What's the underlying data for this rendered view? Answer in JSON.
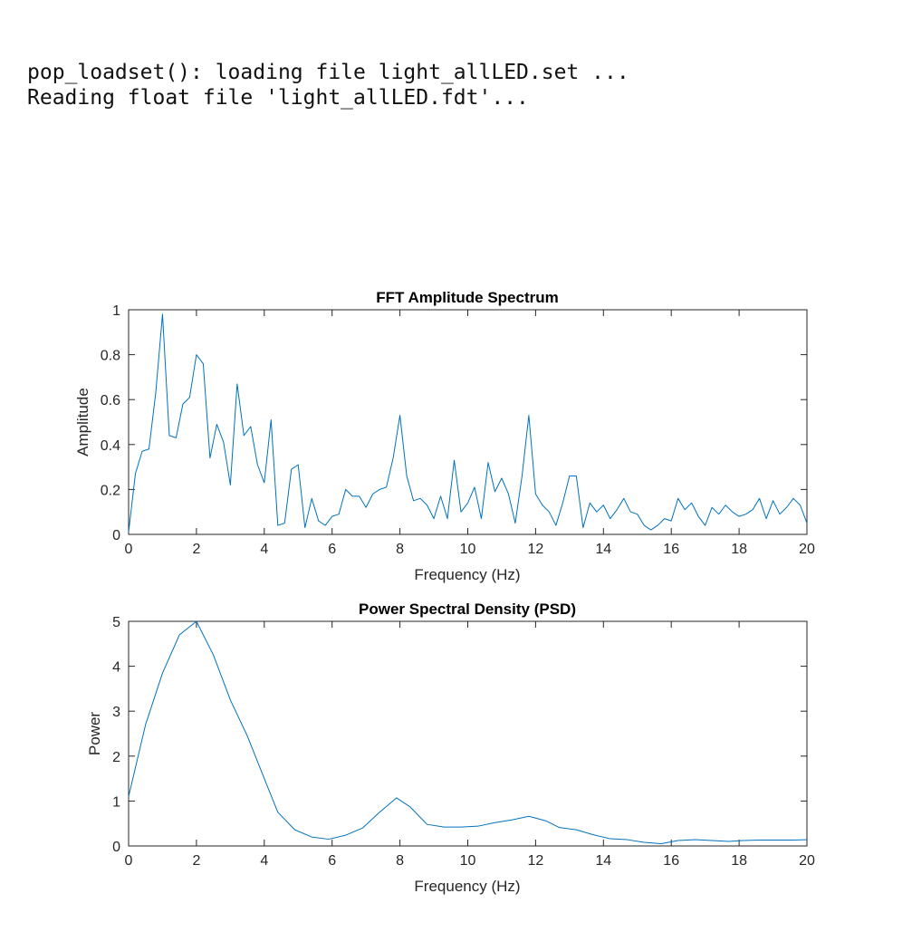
{
  "console": {
    "lines": [
      "pop_loadset(): loading file light_allLED.set ...",
      "Reading float file 'light_allLED.fdt'..."
    ]
  },
  "colors": {
    "series": "#0072BD",
    "axes": "#262626"
  },
  "chart_data": [
    {
      "type": "line",
      "title": "FFT Amplitude Spectrum",
      "xlabel": "Frequency (Hz)",
      "ylabel": "Amplitude",
      "xlim": [
        0,
        20
      ],
      "ylim": [
        0,
        1
      ],
      "xticks": [
        0,
        2,
        4,
        6,
        8,
        10,
        12,
        14,
        16,
        18,
        20
      ],
      "yticks": [
        0,
        0.2,
        0.4,
        0.6,
        0.8,
        1
      ],
      "xtick_labels": [
        "0",
        "2",
        "4",
        "6",
        "8",
        "10",
        "12",
        "14",
        "16",
        "18",
        "20"
      ],
      "ytick_labels": [
        "0",
        "0.2",
        "0.4",
        "0.6",
        "0.8",
        "1"
      ],
      "grid": false,
      "series": [
        {
          "color": "#0072BD",
          "x": [
            0,
            0.2,
            0.4,
            0.6,
            0.8,
            1.0,
            1.2,
            1.4,
            1.6,
            1.8,
            2.0,
            2.2,
            2.4,
            2.6,
            2.8,
            3.0,
            3.2,
            3.4,
            3.6,
            3.8,
            4.0,
            4.2,
            4.4,
            4.6,
            4.8,
            5.0,
            5.2,
            5.4,
            5.6,
            5.8,
            6.0,
            6.2,
            6.4,
            6.6,
            6.8,
            7.0,
            7.2,
            7.4,
            7.6,
            7.8,
            8.0,
            8.2,
            8.4,
            8.6,
            8.8,
            9.0,
            9.2,
            9.4,
            9.6,
            9.8,
            10.0,
            10.2,
            10.4,
            10.6,
            10.8,
            11.0,
            11.2,
            11.4,
            11.6,
            11.8,
            12.0,
            12.2,
            12.4,
            12.6,
            12.8,
            13.0,
            13.2,
            13.4,
            13.6,
            13.8,
            14.0,
            14.2,
            14.4,
            14.6,
            14.8,
            15.0,
            15.2,
            15.4,
            15.6,
            15.8,
            16.0,
            16.2,
            16.4,
            16.6,
            16.8,
            17.0,
            17.2,
            17.4,
            17.6,
            17.8,
            18.0,
            18.2,
            18.4,
            18.6,
            18.8,
            19.0,
            19.2,
            19.4,
            19.6,
            19.8,
            20.0
          ],
          "y": [
            0.01,
            0.27,
            0.37,
            0.38,
            0.63,
            0.98,
            0.44,
            0.43,
            0.58,
            0.61,
            0.8,
            0.76,
            0.34,
            0.49,
            0.41,
            0.22,
            0.67,
            0.44,
            0.48,
            0.31,
            0.23,
            0.51,
            0.04,
            0.05,
            0.29,
            0.31,
            0.03,
            0.16,
            0.06,
            0.04,
            0.08,
            0.09,
            0.2,
            0.17,
            0.17,
            0.12,
            0.18,
            0.2,
            0.21,
            0.34,
            0.53,
            0.26,
            0.15,
            0.16,
            0.13,
            0.07,
            0.17,
            0.07,
            0.33,
            0.1,
            0.14,
            0.21,
            0.07,
            0.32,
            0.19,
            0.25,
            0.18,
            0.05,
            0.26,
            0.53,
            0.18,
            0.13,
            0.1,
            0.04,
            0.14,
            0.26,
            0.26,
            0.03,
            0.14,
            0.1,
            0.13,
            0.07,
            0.11,
            0.16,
            0.1,
            0.09,
            0.04,
            0.02,
            0.04,
            0.07,
            0.06,
            0.16,
            0.11,
            0.14,
            0.08,
            0.04,
            0.12,
            0.09,
            0.13,
            0.1,
            0.08,
            0.09,
            0.11,
            0.16,
            0.07,
            0.15,
            0.09,
            0.12,
            0.16,
            0.13,
            0.05
          ]
        }
      ]
    },
    {
      "type": "line",
      "title": "Power Spectral Density (PSD)",
      "xlabel": "Frequency (Hz)",
      "ylabel": "Power",
      "xlim": [
        0,
        20
      ],
      "ylim": [
        0,
        5
      ],
      "xticks": [
        0,
        2,
        4,
        6,
        8,
        10,
        12,
        14,
        16,
        18,
        20
      ],
      "yticks": [
        0,
        1,
        2,
        3,
        4,
        5
      ],
      "xtick_labels": [
        "0",
        "2",
        "4",
        "6",
        "8",
        "10",
        "12",
        "14",
        "16",
        "18",
        "20"
      ],
      "ytick_labels": [
        "0",
        "1",
        "2",
        "3",
        "4",
        "5"
      ],
      "grid": false,
      "series": [
        {
          "color": "#0072BD",
          "x": [
            0,
            0.5,
            1.0,
            1.5,
            2.0,
            2.5,
            3.0,
            3.5,
            4.0,
            4.4,
            4.9,
            5.4,
            5.9,
            6.4,
            6.9,
            7.4,
            7.9,
            8.3,
            8.8,
            9.3,
            9.8,
            10.3,
            10.8,
            11.3,
            11.8,
            12.3,
            12.7,
            13.2,
            13.7,
            14.2,
            14.7,
            15.2,
            15.7,
            16.2,
            16.7,
            17.2,
            17.7,
            18.1,
            18.6,
            19.1,
            19.6,
            20.0
          ],
          "y": [
            1.1,
            2.7,
            3.85,
            4.7,
            5.0,
            4.25,
            3.25,
            2.45,
            1.5,
            0.75,
            0.36,
            0.2,
            0.15,
            0.24,
            0.4,
            0.75,
            1.07,
            0.87,
            0.48,
            0.42,
            0.42,
            0.44,
            0.52,
            0.58,
            0.66,
            0.56,
            0.41,
            0.36,
            0.25,
            0.16,
            0.14,
            0.08,
            0.05,
            0.12,
            0.14,
            0.12,
            0.1,
            0.12,
            0.13,
            0.13,
            0.13,
            0.14
          ]
        }
      ]
    }
  ]
}
